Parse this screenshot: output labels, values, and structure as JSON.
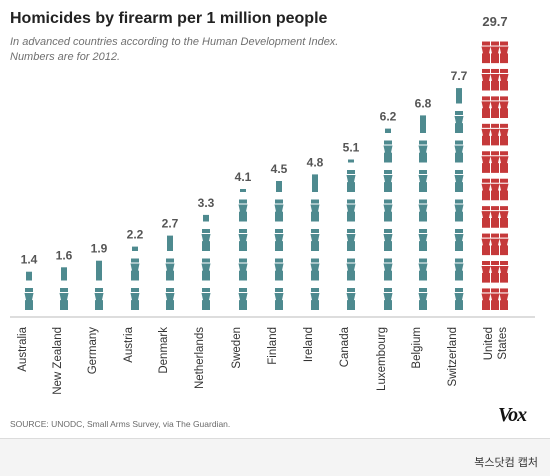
{
  "header": {
    "title": "Homicides by firearm per 1 million people",
    "subtitle": "In advanced countries according to the Human Development Index. Numbers are for 2012."
  },
  "footer": {
    "source": "SOURCE: UNODC, Small Arms Survey, via The Guardian.",
    "logo": "Vox"
  },
  "caption": "복스닷컴 캡처",
  "colors": {
    "teal": "#4e8a8f",
    "red": "#c5393a",
    "value_label": "#555555",
    "axis": "#bbbbbb"
  },
  "chart_data": {
    "type": "bar",
    "title": "Homicides by firearm per 1 million people",
    "subtitle": "In advanced countries according to the Human Development Index. Numbers are for 2012.",
    "categories": [
      "Australia",
      "New Zealand",
      "Germany",
      "Austria",
      "Denmark",
      "Netherlands",
      "Sweden",
      "Finland",
      "Ireland",
      "Canada",
      "Luxembourg",
      "Belgium",
      "Switzerland",
      "United States"
    ],
    "values": [
      1.4,
      1.6,
      1.9,
      2.2,
      2.7,
      3.3,
      4.1,
      4.5,
      4.8,
      5.1,
      6.2,
      6.8,
      7.7,
      29.7
    ],
    "display_labels": [
      "1.4",
      "1.6",
      "1.9",
      "2.2",
      "2.7",
      "3.3",
      "4.1",
      "4.5",
      "4.8",
      "5.1",
      "6.2",
      "6.8",
      "7.7",
      "29.7"
    ],
    "highlight": "United States",
    "encoding": "pictogram",
    "xlabel": "",
    "ylabel": ""
  }
}
